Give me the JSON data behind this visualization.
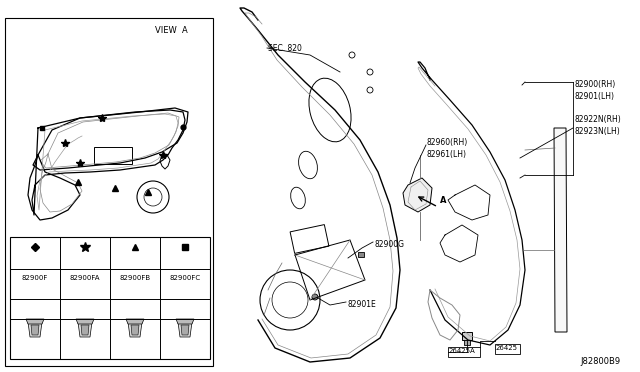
{
  "diagram_id": "J82800B9",
  "bg_color": "#ffffff",
  "lc": "#000000",
  "labels": {
    "view_a": "VIEW  A",
    "sec_820": "SEC. 820",
    "82900G": "82900G",
    "82901E": "82901E",
    "82900RH": "82900(RH)",
    "82901LH": "82901(LH)",
    "82960RH": "82960(RH)",
    "82961LH": "82961(LH)",
    "82922N": "82922N(RH)",
    "82923N": "82923N(LH)",
    "26425": "26425",
    "26425A": "26425A",
    "A": "A",
    "82900F": "82900F",
    "82900FA": "82900FA",
    "82900FB": "82900FB",
    "82900FC": "82900FC"
  }
}
